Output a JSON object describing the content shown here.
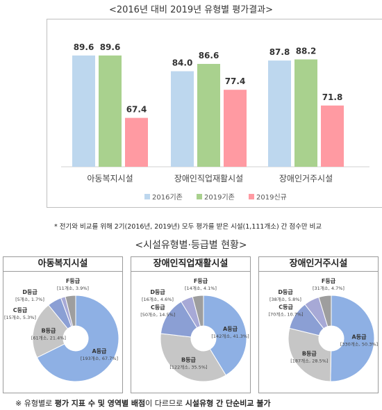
{
  "title_bar": "<2016년 대비 2019년 유형별 평가결과>",
  "title_pie": "<시설유형별·등급별 현황>",
  "note_top": "* 전기와 비교를 위해 2기(2016년, 2019년) 모두 평가를 받은 시설(1,111개소) 간 점수만 비교",
  "note_bottom": {
    "prefix": "※ 유형별로 ",
    "bold1": "평가 지표 수 및 영역별 배점",
    "mid": "이 다르므로 ",
    "bold2": "시설유형 간 단순비교 불가"
  },
  "colors": {
    "s2016": "#bdd7ee",
    "s2019": "#a9d18e",
    "new2019": "#ff9aa2",
    "A": "#8faadc",
    "B": "#bfbfbf",
    "C": "#8ea9db",
    "D": "#9fa8da",
    "F": "#a6a6a6"
  },
  "chart_data": [
    {
      "type": "bar",
      "categories": [
        "아동복지시설",
        "장애인직업재활시설",
        "장애인거주시설"
      ],
      "series": [
        {
          "name": "2016기존",
          "values": [
            89.6,
            84.0,
            87.8
          ]
        },
        {
          "name": "2019기존",
          "values": [
            89.6,
            86.6,
            88.2
          ]
        },
        {
          "name": "2019신규",
          "values": [
            67.4,
            77.4,
            71.8
          ]
        }
      ],
      "ylim": [
        50,
        95
      ],
      "grid": false,
      "legend": "bottom"
    },
    {
      "type": "pie",
      "title": "아동복지시설",
      "slices": [
        {
          "grade": "A등급",
          "label": "[193개소, 67.7%]",
          "value": 67.7
        },
        {
          "grade": "B등급",
          "label": "[61개소, 21.4%]",
          "value": 21.4
        },
        {
          "grade": "C등급",
          "label": "[15개소, 5.3%]",
          "value": 5.3
        },
        {
          "grade": "D등급",
          "label": "[5개소, 1.7%]",
          "value": 1.7
        },
        {
          "grade": "F등급",
          "label": "[11개소, 3.9%]",
          "value": 3.9
        }
      ]
    },
    {
      "type": "pie",
      "title": "장애인직업재활시설",
      "slices": [
        {
          "grade": "A등급",
          "label": "[142개소, 41.3%]",
          "value": 41.3
        },
        {
          "grade": "B등급",
          "label": "[122개소, 35.5%]",
          "value": 35.5
        },
        {
          "grade": "C등급",
          "label": "[50개소, 14.5%]",
          "value": 14.5
        },
        {
          "grade": "D등급",
          "label": "[16개소, 4.6%]",
          "value": 4.6
        },
        {
          "grade": "F등급",
          "label": "[14개소, 4.1%]",
          "value": 4.1
        }
      ]
    },
    {
      "type": "pie",
      "title": "장애인거주시설",
      "slices": [
        {
          "grade": "A등급",
          "label": "[330개소, 50.3%]",
          "value": 50.3
        },
        {
          "grade": "B등급",
          "label": "[187개소, 28.5%]",
          "value": 28.5
        },
        {
          "grade": "C등급",
          "label": "[70개소, 10.7%]",
          "value": 10.7
        },
        {
          "grade": "D등급",
          "label": "[38개소, 5.8%]",
          "value": 5.8
        },
        {
          "grade": "F등급",
          "label": "[31개소, 4.7%]",
          "value": 4.7
        }
      ]
    }
  ]
}
